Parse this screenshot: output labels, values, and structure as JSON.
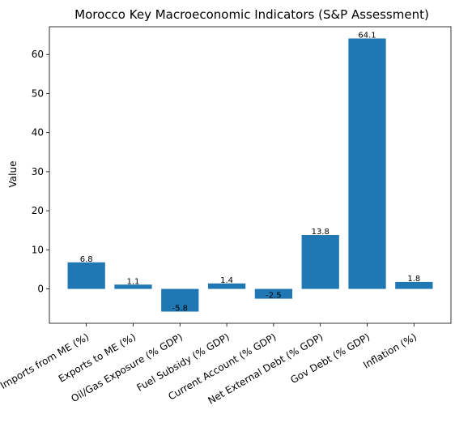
{
  "chart_data": {
    "type": "bar",
    "title": "Morocco Key Macroeconomic Indicators (S&P Assessment)",
    "xlabel": "",
    "ylabel": "Value",
    "categories": [
      "Imports from ME (%)",
      "Exports to ME (%)",
      "Oil/Gas Exposure (% GDP)",
      "Fuel Subsidy (% GDP)",
      "Current Account (% GDP)",
      "Net External Debt (% GDP)",
      "Gov Debt (% GDP)",
      "Inflation (%)"
    ],
    "values": [
      6.8,
      1.1,
      -5.8,
      1.4,
      -2.5,
      13.8,
      64.1,
      1.8
    ],
    "data_labels": [
      "6.8",
      "1.1",
      "-5.8",
      "1.4",
      "-2.5",
      "13.8",
      "64.1",
      "1.8"
    ],
    "ylim": [
      -8.8,
      67.1
    ],
    "yticks": [
      0,
      10,
      20,
      30,
      40,
      50,
      60
    ],
    "ytick_labels": [
      "0",
      "10",
      "20",
      "30",
      "40",
      "50",
      "60"
    ],
    "bar_color": "#1f77b4",
    "grid": false,
    "legend": "none"
  }
}
